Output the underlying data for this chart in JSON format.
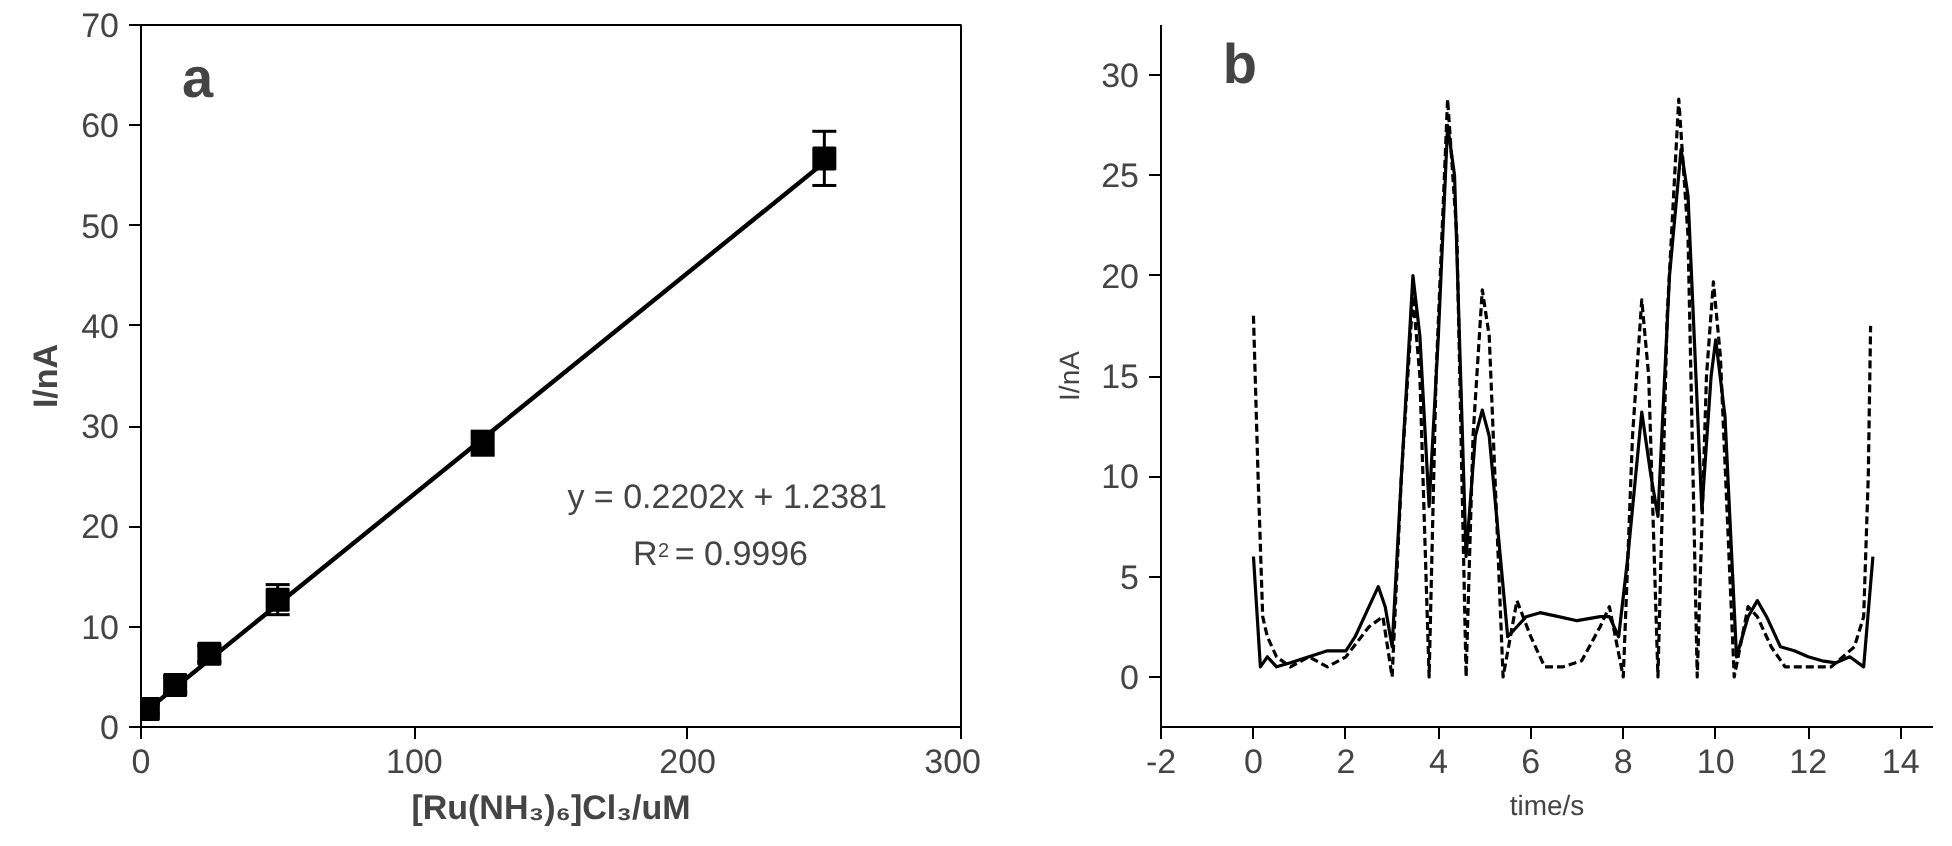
{
  "chart_data": [
    {
      "type": "scatter",
      "xlabel": "[Ru(NH₃)₆]Cl₃/uM",
      "ylabel": "I/nA",
      "xlim": [
        0,
        300
      ],
      "ylim": [
        0,
        70
      ],
      "xticks": [
        0,
        100,
        200,
        300
      ],
      "yticks": [
        0,
        10,
        20,
        30,
        40,
        50,
        60,
        70
      ],
      "annotations": [
        "a",
        "y = 0.2202x + 1.2381",
        "R$^{2}$ = 0.9996"
      ],
      "series": [
        {
          "type": "scatter",
          "marker": "square",
          "color": "#000000",
          "x": [
            2.5,
            12.5,
            25,
            50,
            125,
            250
          ],
          "values": [
            1.8,
            4.2,
            7.3,
            12.7,
            28.3,
            56.7
          ],
          "errors": [
            0.5,
            0.8,
            0.8,
            1.5,
            1.2,
            2.7
          ]
        },
        {
          "type": "line",
          "color": "#000000",
          "x": [
            0,
            250
          ],
          "values": [
            1.2,
            56.3
          ]
        }
      ]
    },
    {
      "type": "line",
      "xlabel": "time/s",
      "ylabel": "I/nA",
      "xlim": [
        -2,
        14.7
      ],
      "ylim": [
        -2.5,
        32.5
      ],
      "xticks": [
        -2,
        0,
        2,
        4,
        6,
        8,
        10,
        12,
        14
      ],
      "yticks": [
        0,
        5,
        10,
        15,
        20,
        25,
        30
      ],
      "annotations": [
        "b"
      ],
      "series": [
        {
          "color": "#000000",
          "line_style": "solid",
          "x": [
            0,
            0.15,
            0.3,
            0.5,
            0.8,
            1.2,
            1.6,
            2.0,
            2.2,
            2.5,
            2.7,
            2.85,
            3.0,
            3.2,
            3.45,
            3.6,
            3.8,
            4.0,
            4.2,
            4.35,
            4.6,
            4.8,
            4.95,
            5.1,
            5.5,
            5.7,
            5.9,
            6.2,
            6.6,
            7.0,
            7.5,
            7.7,
            7.9,
            8.1,
            8.4,
            8.6,
            8.75,
            9.0,
            9.25,
            9.4,
            9.7,
            9.9,
            10.0,
            10.2,
            10.45,
            10.7,
            10.9,
            11.1,
            11.4,
            11.7,
            12.0,
            12.3,
            12.6,
            12.9,
            13.2,
            13.4
          ],
          "values": [
            6,
            0.5,
            1,
            0.5,
            0.7,
            1,
            1.3,
            1.3,
            2,
            3.5,
            4.5,
            3.5,
            1.5,
            10,
            20,
            17,
            8.5,
            17,
            27.5,
            25,
            6,
            12,
            13.3,
            12,
            2,
            2.5,
            3,
            3.2,
            3,
            2.8,
            3,
            3,
            2,
            6,
            13.2,
            10,
            8,
            20,
            26.3,
            24,
            8.3,
            15,
            16.8,
            13,
            1,
            3,
            3.8,
            3,
            1.5,
            1.3,
            1,
            0.8,
            0.7,
            1,
            0.5,
            6
          ]
        },
        {
          "color": "#000000",
          "line_style": "dashed",
          "x": [
            0,
            0.1,
            0.2,
            0.3,
            0.5,
            0.8,
            1.2,
            1.6,
            2.0,
            2.5,
            2.8,
            3.0,
            3.2,
            3.45,
            3.6,
            3.8,
            3.95,
            4.2,
            4.4,
            4.6,
            4.75,
            4.95,
            5.1,
            5.4,
            5.7,
            6.0,
            6.3,
            6.7,
            7.1,
            7.5,
            7.7,
            8.0,
            8.2,
            8.4,
            8.55,
            8.75,
            8.95,
            9.2,
            9.4,
            9.6,
            9.8,
            9.95,
            10.1,
            10.4,
            10.7,
            10.9,
            11.2,
            11.5,
            12.0,
            12.5,
            13.0,
            13.2,
            13.3,
            13.35
          ],
          "values": [
            18,
            10,
            3,
            2,
            1,
            0.5,
            1,
            0.5,
            1,
            2.5,
            3,
            0,
            10,
            19,
            15,
            0,
            15,
            28.8,
            22,
            0,
            12,
            19.3,
            17,
            0,
            3.8,
            2,
            0.5,
            0.5,
            0.8,
            2.5,
            3.5,
            0,
            12,
            18.8,
            15,
            0,
            18,
            28.8,
            22,
            0,
            15,
            19.7,
            16,
            0,
            3.5,
            3,
            1.5,
            0.5,
            0.5,
            0.5,
            1.5,
            3,
            10,
            17.5
          ]
        }
      ]
    }
  ]
}
